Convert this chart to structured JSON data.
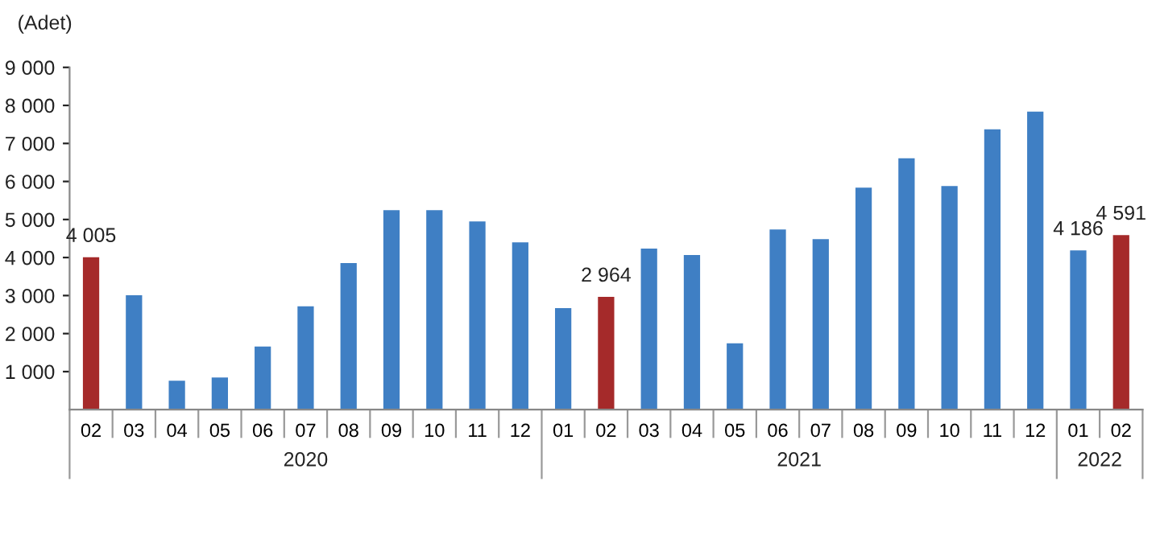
{
  "chart_data": {
    "type": "bar",
    "ylabel": "(Adet)",
    "categories": [
      "02",
      "03",
      "04",
      "05",
      "06",
      "07",
      "08",
      "09",
      "10",
      "11",
      "12",
      "01",
      "02",
      "03",
      "04",
      "05",
      "06",
      "07",
      "08",
      "09",
      "10",
      "11",
      "12",
      "01",
      "02"
    ],
    "values": [
      4005,
      3010,
      760,
      845,
      1660,
      2715,
      3855,
      5245,
      5245,
      4950,
      4400,
      2670,
      2964,
      4235,
      4065,
      1745,
      4740,
      4485,
      5835,
      6610,
      5880,
      7370,
      7835,
      4186,
      4591
    ],
    "colors": [
      "#a52a2a",
      "#3f7fc4",
      "#3f7fc4",
      "#3f7fc4",
      "#3f7fc4",
      "#3f7fc4",
      "#3f7fc4",
      "#3f7fc4",
      "#3f7fc4",
      "#3f7fc4",
      "#3f7fc4",
      "#3f7fc4",
      "#a52a2a",
      "#3f7fc4",
      "#3f7fc4",
      "#3f7fc4",
      "#3f7fc4",
      "#3f7fc4",
      "#3f7fc4",
      "#3f7fc4",
      "#3f7fc4",
      "#3f7fc4",
      "#3f7fc4",
      "#3f7fc4",
      "#a52a2a"
    ],
    "value_labels": [
      "4 005",
      null,
      null,
      null,
      null,
      null,
      null,
      null,
      null,
      null,
      null,
      null,
      "2 964",
      null,
      null,
      null,
      null,
      null,
      null,
      null,
      null,
      null,
      null,
      "4 186",
      "4 591"
    ],
    "annotations": [
      "2020",
      "2021",
      "2022"
    ],
    "ylim": [
      0,
      9000
    ],
    "yticks": [
      {
        "value": 1000,
        "label": "1 000"
      },
      {
        "value": 2000,
        "label": "2 000"
      },
      {
        "value": 3000,
        "label": "3 000"
      },
      {
        "value": 4000,
        "label": "4 000"
      },
      {
        "value": 5000,
        "label": "5 000"
      },
      {
        "value": 6000,
        "label": "6 000"
      },
      {
        "value": 7000,
        "label": "7 000"
      },
      {
        "value": 8000,
        "label": "8 000"
      },
      {
        "value": 9000,
        "label": "9 000"
      }
    ],
    "grid": false,
    "legend": false
  }
}
